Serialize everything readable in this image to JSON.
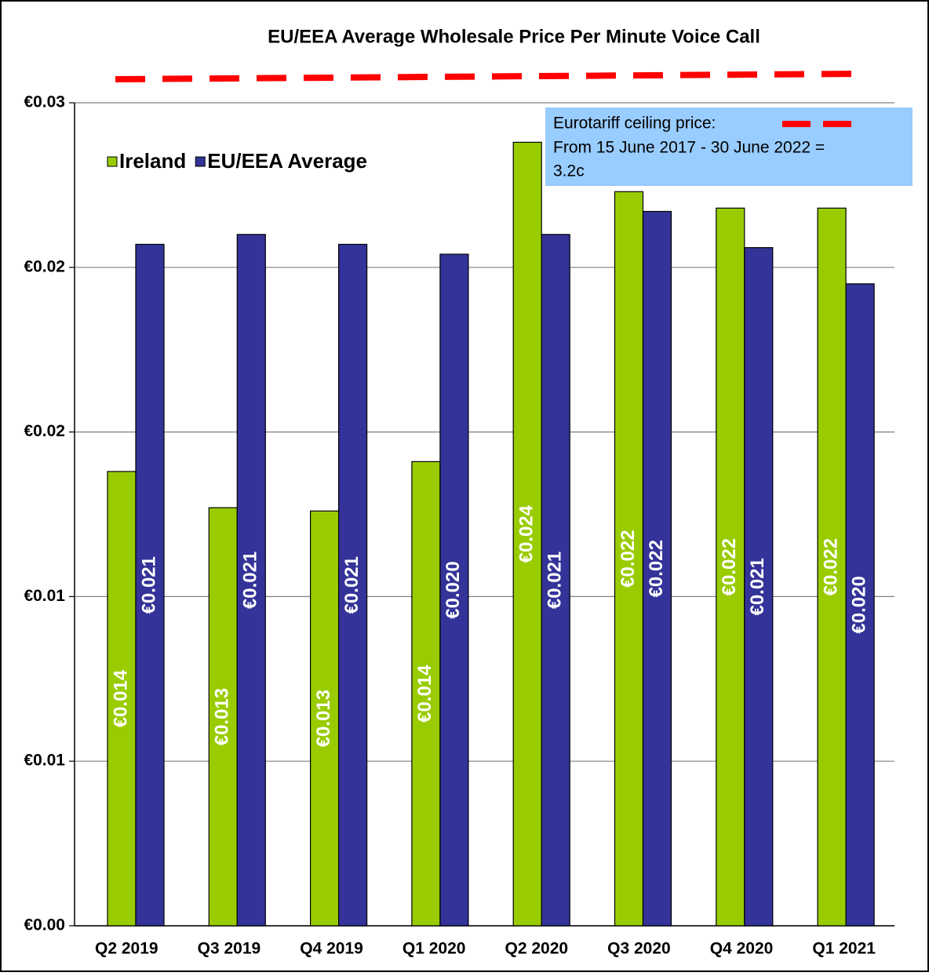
{
  "chart_data": {
    "type": "bar",
    "title": "EU/EEA Average Wholesale Price Per Minute Voice Call",
    "categories": [
      "Q2 2019",
      "Q3 2019",
      "Q4 2019",
      "Q1 2020",
      "Q2 2020",
      "Q3 2020",
      "Q4 2020",
      "Q1 2021"
    ],
    "series": [
      {
        "name": "Ireland",
        "color": "#99cc00",
        "values": [
          0.0138,
          0.0127,
          0.0126,
          0.0141,
          0.0238,
          0.0223,
          0.0218,
          0.0218
        ],
        "value_labels": [
          "€0.014",
          "€0.013",
          "€0.013",
          "€0.014",
          "€0.024",
          "€0.022",
          "€0.022",
          "€0.022"
        ]
      },
      {
        "name": "EU/EEA Average",
        "color": "#333399",
        "values": [
          0.0207,
          0.021,
          0.0207,
          0.0204,
          0.021,
          0.0217,
          0.0206,
          0.0195
        ],
        "value_labels": [
          "€0.021",
          "€0.021",
          "€0.021",
          "€0.020",
          "€0.021",
          "€0.022",
          "€0.021",
          "€0.020"
        ]
      }
    ],
    "ylim": [
      0,
      0.025
    ],
    "yticks": [
      {
        "value": 0,
        "label": "€0.00"
      },
      {
        "value": 0.005,
        "label": "€0.01"
      },
      {
        "value": 0.01,
        "label": "€0.01"
      },
      {
        "value": 0.015,
        "label": "€0.02"
      },
      {
        "value": 0.02,
        "label": "€0.02"
      },
      {
        "value": 0.025,
        "label": "€0.03"
      }
    ],
    "grid": true,
    "annotation": {
      "lines": [
        "Eurotariff ceiling price:",
        "From 15 June 2017 - 30 June 2022 =",
        "3.2c"
      ]
    }
  }
}
